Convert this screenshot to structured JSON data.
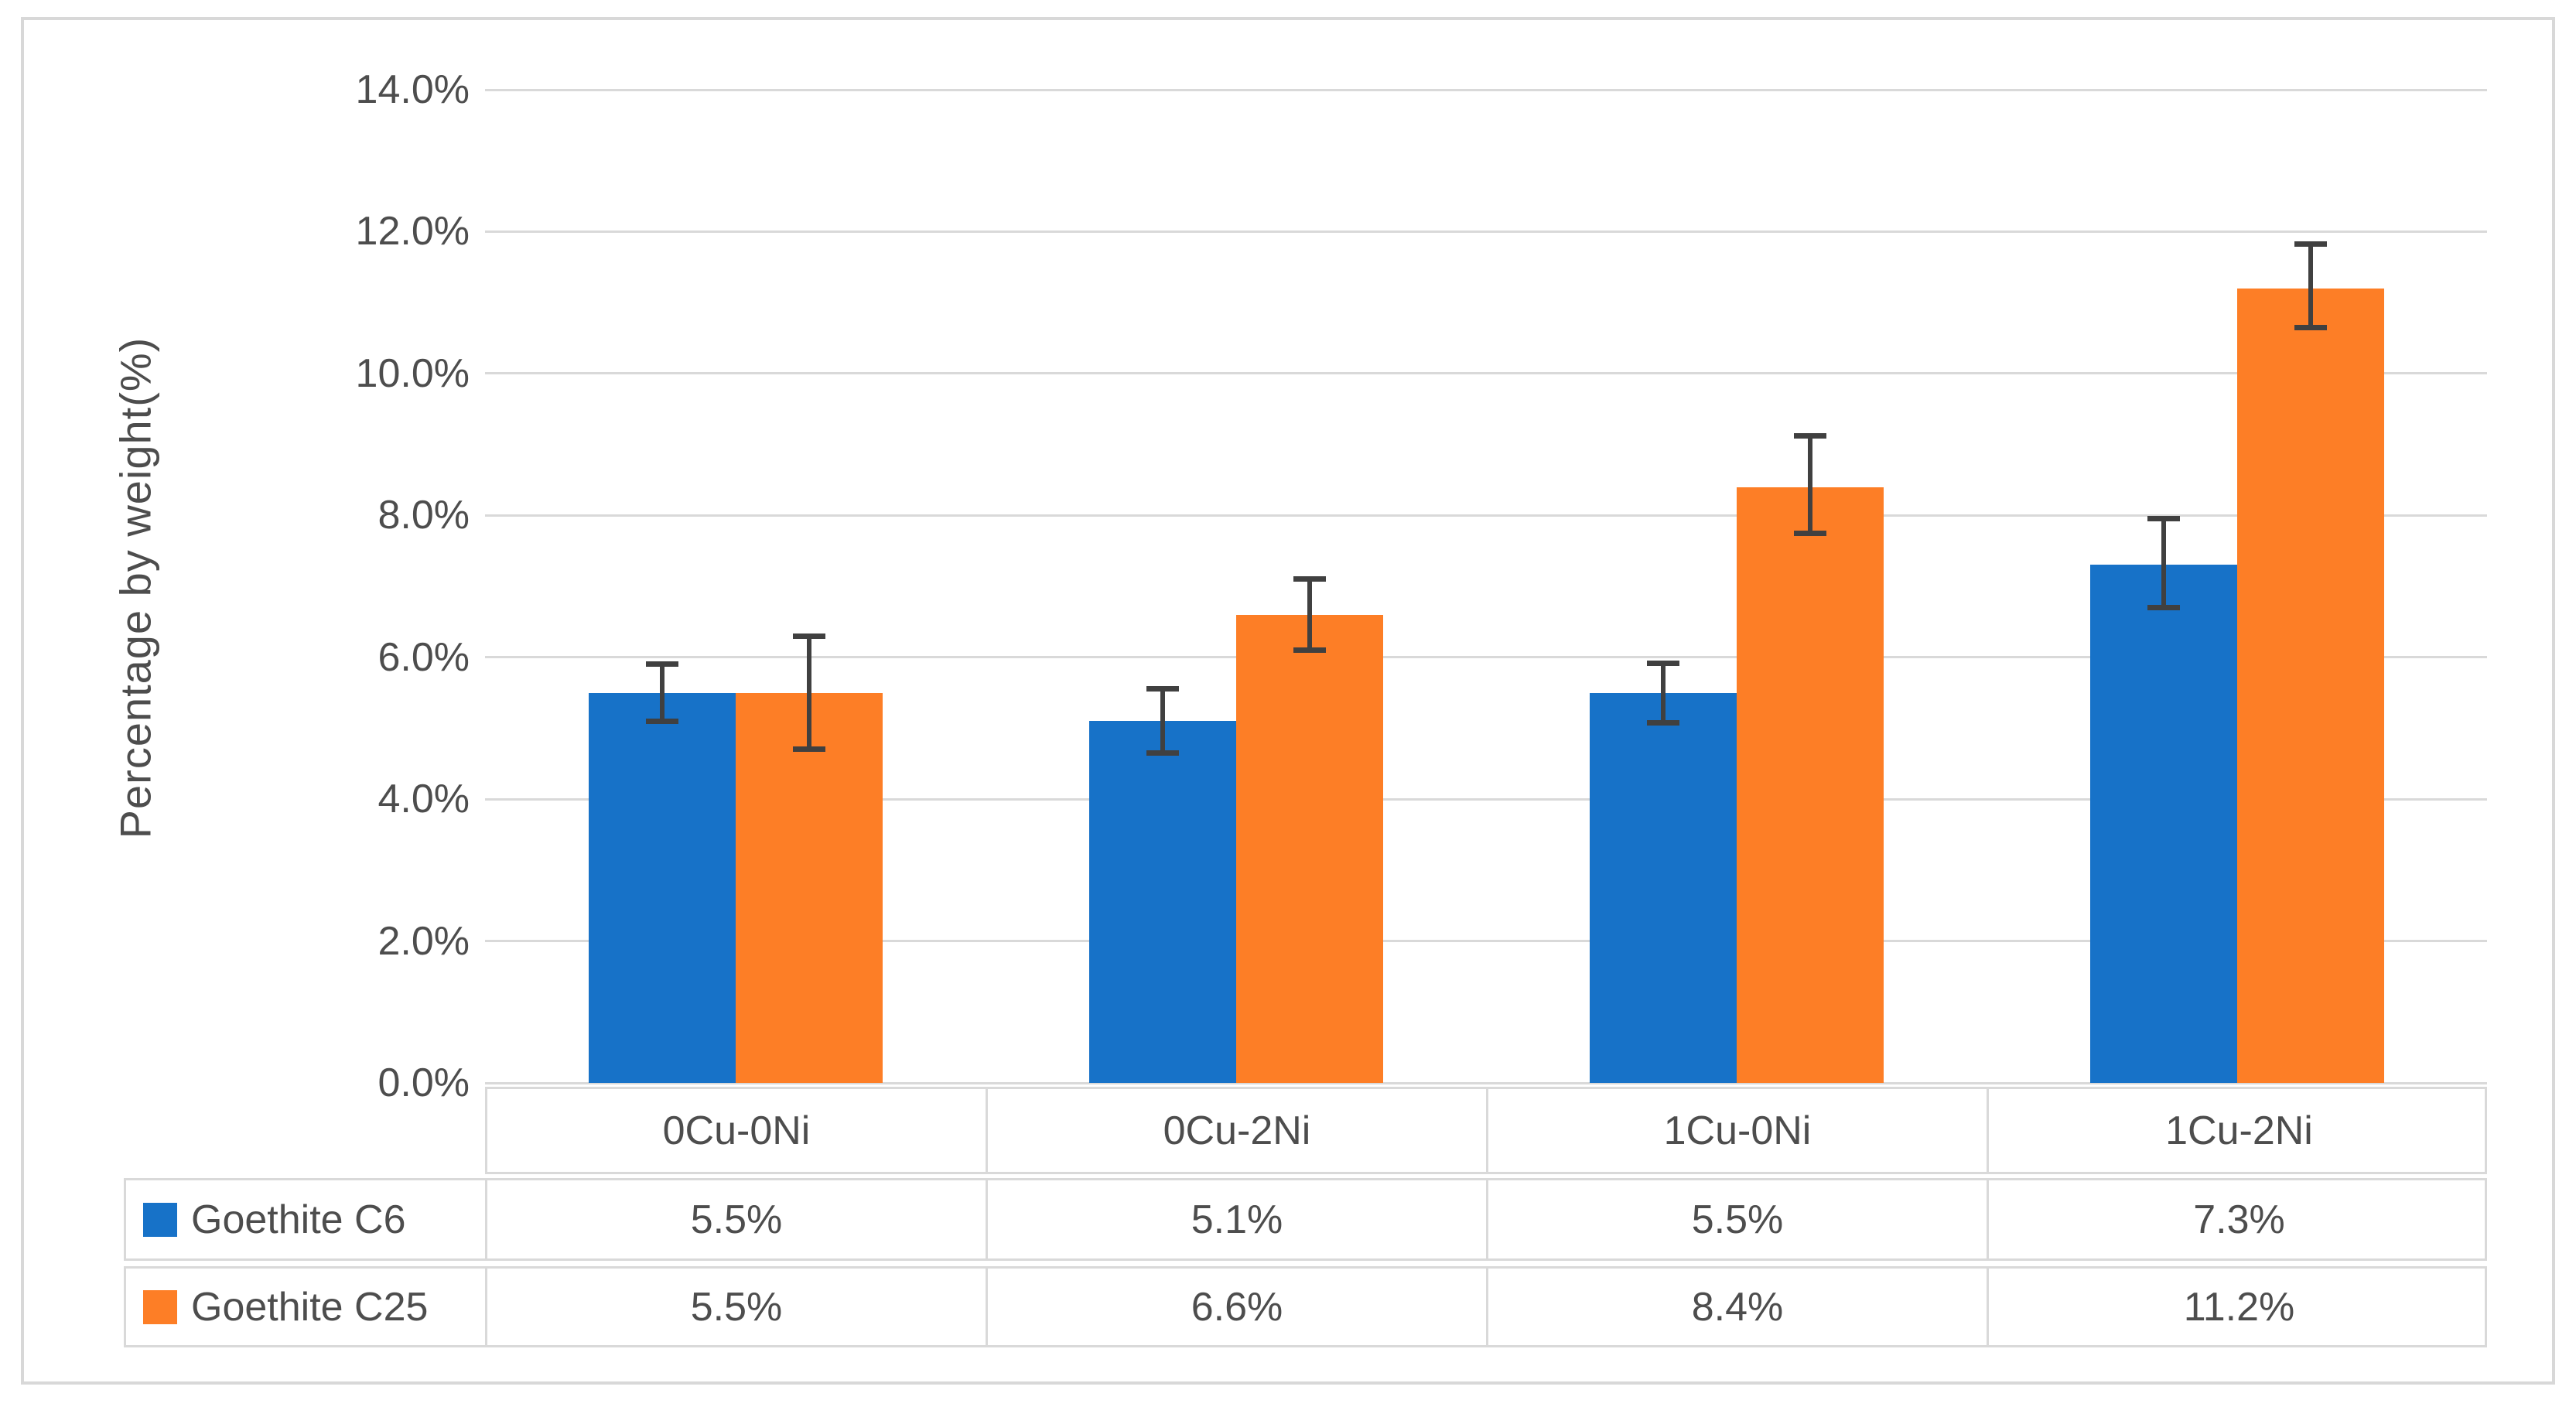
{
  "chart_data": {
    "type": "bar",
    "title": "",
    "y_axis_title": "Percentage by weight(%)",
    "categories": [
      "0Cu-0Ni",
      "0Cu-2Ni",
      "1Cu-0Ni",
      "1Cu-2Ni"
    ],
    "series": [
      {
        "name": "Goethite C6",
        "color": "#1772C8",
        "values": [
          5.5,
          5.1,
          5.5,
          7.3
        ],
        "display_values": [
          "5.5%",
          "5.1%",
          "5.5%",
          "7.3%"
        ],
        "errors_plus": [
          0.4,
          0.45,
          0.42,
          0.65
        ],
        "errors_minus": [
          0.4,
          0.45,
          0.42,
          0.6
        ]
      },
      {
        "name": "Goethite C25",
        "color": "#FD7E26",
        "values": [
          5.5,
          6.6,
          8.4,
          11.2
        ],
        "display_values": [
          "5.5%",
          "6.6%",
          "8.4%",
          "11.2%"
        ],
        "errors_plus": [
          0.8,
          0.5,
          0.72,
          0.62
        ],
        "errors_minus": [
          0.8,
          0.5,
          0.65,
          0.55
        ]
      }
    ],
    "y_axis": {
      "min": 0,
      "max": 14,
      "step": 2,
      "tick_labels": [
        "0.0%",
        "2.0%",
        "4.0%",
        "6.0%",
        "8.0%",
        "10.0%",
        "12.0%",
        "14.0%"
      ]
    },
    "grid": true,
    "legend_position": "data-table-left-column",
    "colors": {
      "gridline": "#D9D9D9",
      "table_border": "#D9D9D9",
      "outer_border": "#D8D8D8",
      "error_bar": "#404040",
      "text": "#4D4D4D"
    }
  }
}
